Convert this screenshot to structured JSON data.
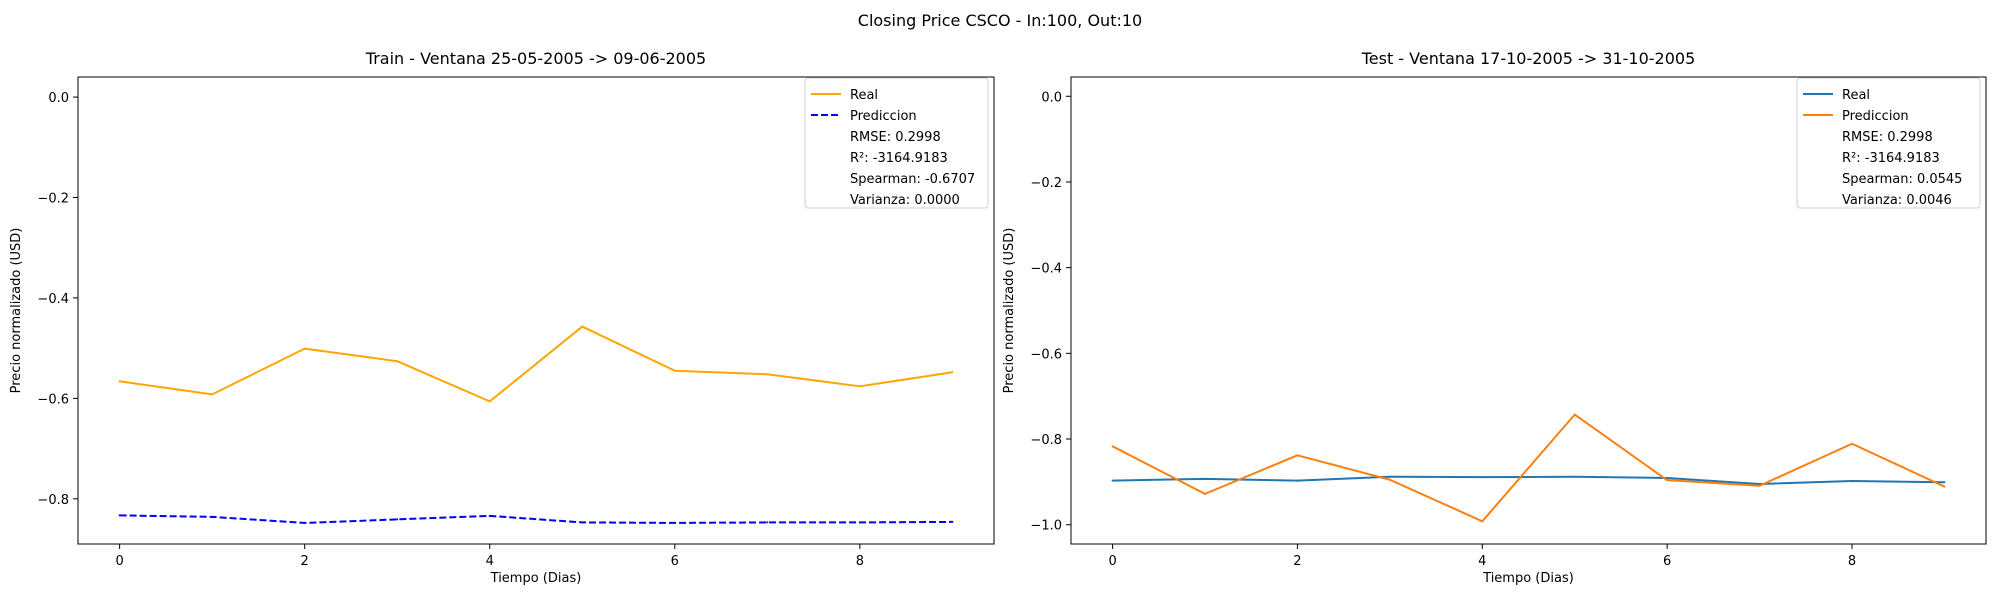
{
  "figure": {
    "suptitle": "Closing Price CSCO - In:100, Out:10"
  },
  "chart_data": [
    {
      "type": "line",
      "title": "Train - Ventana 25-05-2005 -> 09-06-2005",
      "xlabel": "Tiempo (Dias)",
      "ylabel": "Precio normalizado (USD)",
      "xlim": [
        -0.45,
        9.45
      ],
      "ylim": [
        -0.89,
        0.04
      ],
      "xticks": [
        0,
        2,
        4,
        6,
        8
      ],
      "yticks": [
        0.0,
        -0.2,
        -0.4,
        -0.6,
        -0.8
      ],
      "ytick_labels": [
        "0.0",
        "−0.2",
        "−0.4",
        "−0.6",
        "−0.8"
      ],
      "x": [
        0,
        1,
        2,
        3,
        4,
        5,
        6,
        7,
        8,
        9
      ],
      "series": [
        {
          "name": "Real",
          "color": "#ffa500",
          "dash": "solid",
          "values": [
            -0.566,
            -0.592,
            -0.501,
            -0.526,
            -0.606,
            -0.457,
            -0.545,
            -0.552,
            -0.576,
            -0.548
          ]
        },
        {
          "name": "Prediccion",
          "color": "#0000ff",
          "dash": "dashed",
          "values": [
            -0.833,
            -0.836,
            -0.848,
            -0.841,
            -0.834,
            -0.847,
            -0.848,
            -0.847,
            -0.847,
            -0.846
          ]
        }
      ],
      "legend": {
        "position": "top-right",
        "stats": [
          "RMSE: 0.2998",
          "R²: -3164.9183",
          "Spearman: -0.6707",
          "Varianza: 0.0000"
        ]
      },
      "grid": false
    },
    {
      "type": "line",
      "title": "Test - Ventana 17-10-2005 -> 31-10-2005",
      "xlabel": "Tiempo (Dias)",
      "ylabel": "Precio normalizado (USD)",
      "xlim": [
        -0.45,
        9.45
      ],
      "ylim": [
        -1.045,
        0.045
      ],
      "xticks": [
        0,
        2,
        4,
        6,
        8
      ],
      "yticks": [
        0.0,
        -0.2,
        -0.4,
        -0.6,
        -0.8,
        -1.0
      ],
      "ytick_labels": [
        "0.0",
        "−0.2",
        "−0.4",
        "−0.6",
        "−0.8",
        "−1.0"
      ],
      "x": [
        0,
        1,
        2,
        3,
        4,
        5,
        6,
        7,
        8,
        9
      ],
      "series": [
        {
          "name": "Real",
          "color": "#1f77b4",
          "dash": "solid",
          "values": [
            -0.897,
            -0.893,
            -0.897,
            -0.888,
            -0.889,
            -0.888,
            -0.891,
            -0.905,
            -0.898,
            -0.901
          ]
        },
        {
          "name": "Prediccion",
          "color": "#ff7f0e",
          "dash": "solid",
          "values": [
            -0.817,
            -0.928,
            -0.838,
            -0.895,
            -0.992,
            -0.743,
            -0.896,
            -0.909,
            -0.811,
            -0.911
          ]
        }
      ],
      "legend": {
        "position": "top-right",
        "stats": [
          "RMSE: 0.2998",
          "R²: -3164.9183",
          "Spearman: 0.0545",
          "Varianza: 0.0046"
        ]
      },
      "grid": false
    }
  ]
}
